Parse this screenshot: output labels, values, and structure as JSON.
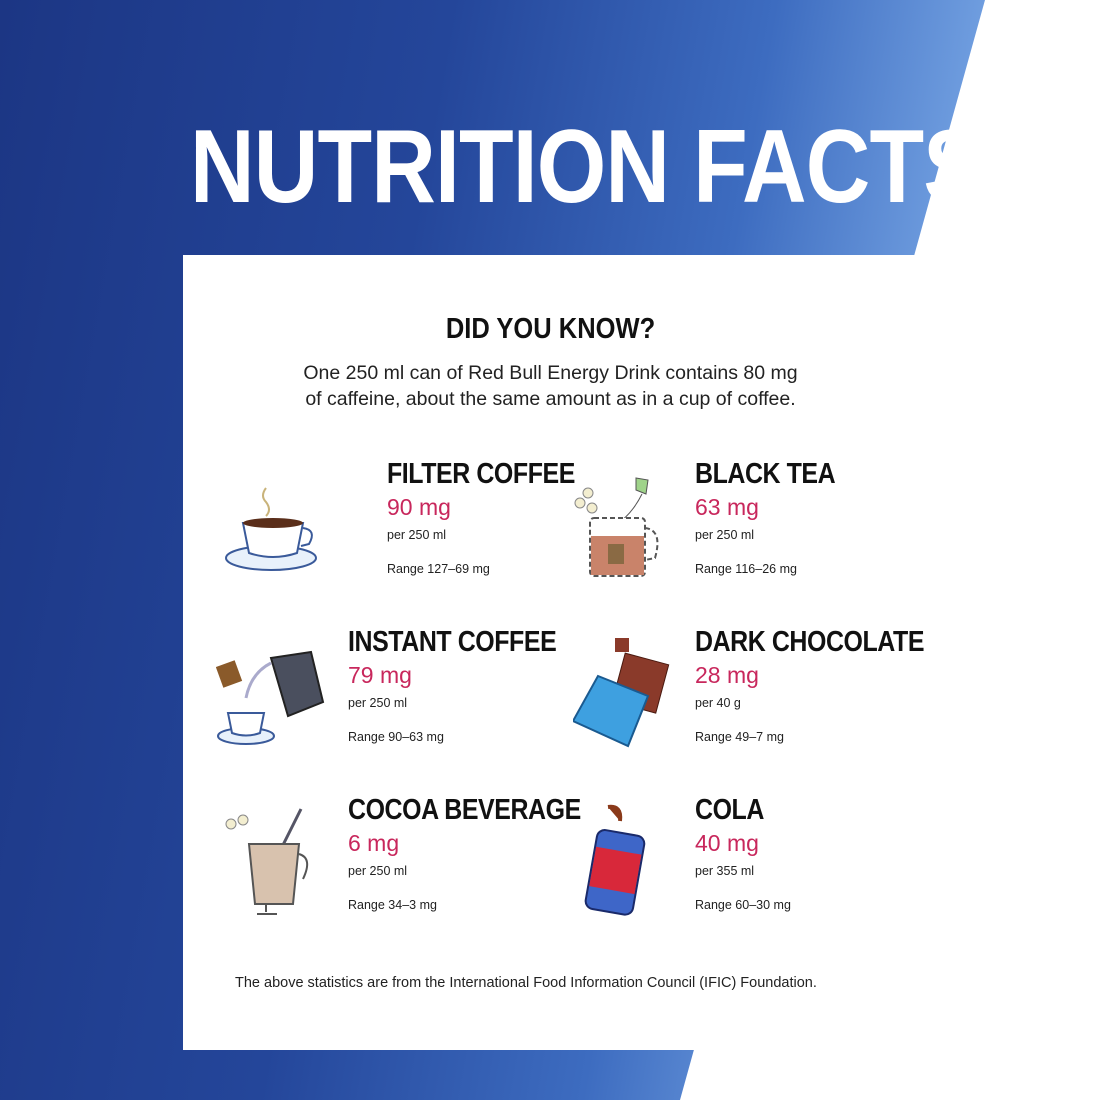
{
  "title": "NUTRITION FACTS",
  "heading": "DID YOU KNOW?",
  "intro_line1": "One 250 ml can of Red Bull Energy Drink contains 80 mg",
  "intro_line2": "of caffeine, about the same amount as in a cup of coffee.",
  "items": [
    {
      "name": "FILTER COFFEE",
      "amount": "90 mg",
      "serving": "per 250 ml",
      "range": "Range 127–69 mg",
      "icon": "coffee-cup-icon"
    },
    {
      "name": "BLACK TEA",
      "amount": "63 mg",
      "serving": "per 250 ml",
      "range": "Range 116–26 mg",
      "icon": "tea-mug-icon"
    },
    {
      "name": "INSTANT COFFEE",
      "amount": "79 mg",
      "serving": "per 250 ml",
      "range": "Range 90–63 mg",
      "icon": "kettle-cup-icon"
    },
    {
      "name": "DARK CHOCOLATE",
      "amount": "28 mg",
      "serving": "per 40 g",
      "range": "Range 49–7 mg",
      "icon": "chocolate-bar-icon"
    },
    {
      "name": "COCOA BEVERAGE",
      "amount": "6 mg",
      "serving": "per 250 ml",
      "range": "Range 34–3 mg",
      "icon": "cocoa-glass-icon"
    },
    {
      "name": "COLA",
      "amount": "40 mg",
      "serving": "per 355 ml",
      "range": "Range 60–30 mg",
      "icon": "cola-can-icon"
    }
  ],
  "footer": "The above statistics are from the International Food Information Council (IFIC) Foundation.",
  "colors": {
    "accent": "#c8275c",
    "brand_blue": "#1c3684"
  }
}
